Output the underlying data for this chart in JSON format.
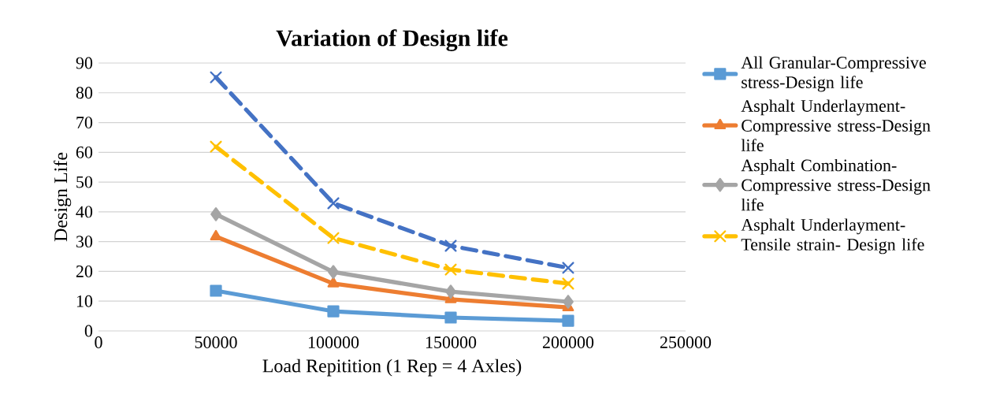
{
  "chart_data": {
    "type": "line",
    "title": "Variation of Design life",
    "xlabel": "Load Repitition (1 Rep = 4 Axles)",
    "ylabel": "Design Life",
    "x": [
      50000,
      100000,
      150000,
      200000
    ],
    "series": [
      {
        "name": "All Granular-Compressive stress-Design life",
        "color": "#5b9bd5",
        "marker": "square",
        "line_style": "solid",
        "values": [
          13.5,
          6.6,
          4.5,
          3.4
        ]
      },
      {
        "name": "Asphalt Underlayment-Compressive stress-Design life",
        "color": "#ed7d31",
        "marker": "triangle",
        "line_style": "solid",
        "values": [
          31.7,
          15.9,
          10.6,
          7.9
        ]
      },
      {
        "name": "Asphalt Combination-Compressive stress-Design life",
        "color": "#a5a5a5",
        "marker": "diamond",
        "line_style": "solid",
        "values": [
          39.2,
          19.8,
          13.2,
          9.8
        ]
      },
      {
        "name": "Asphalt Underlayment-Tensile strain- Design life",
        "color": "#ffc000",
        "marker": "cross",
        "line_style": "dashed",
        "values": [
          61.9,
          31.2,
          20.6,
          15.9
        ]
      },
      {
        "color": "#4472c4",
        "marker": "cross",
        "line_style": "dashed",
        "values": [
          85.2,
          42.9,
          28.6,
          21.2
        ]
      }
    ],
    "xlim": [
      0,
      250000
    ],
    "xticks": [
      0,
      50000,
      100000,
      150000,
      200000,
      250000
    ],
    "ylim": [
      0,
      90
    ],
    "yticks": [
      0,
      10,
      20,
      30,
      40,
      50,
      60,
      70,
      80,
      90
    ],
    "grid": "y",
    "legend": "right"
  }
}
